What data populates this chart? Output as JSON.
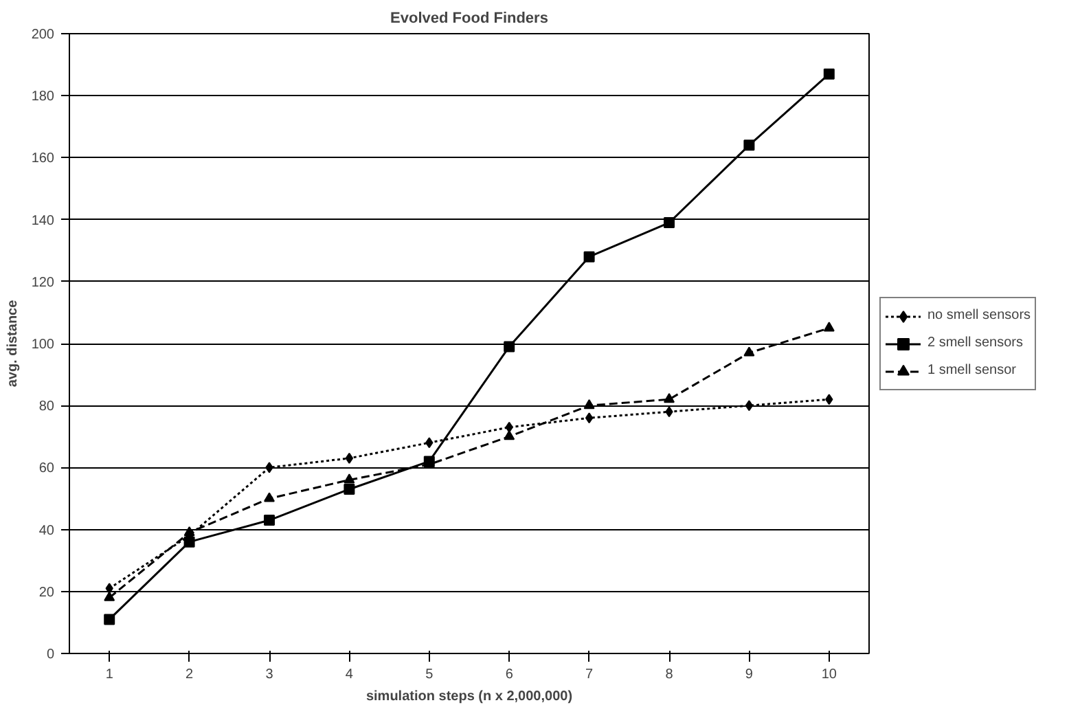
{
  "chart_data": {
    "type": "line",
    "title": "Evolved Food Finders",
    "xlabel": "simulation steps (n x 2,000,000)",
    "ylabel": "avg. distance",
    "categories": [
      "1",
      "2",
      "3",
      "4",
      "5",
      "6",
      "7",
      "8",
      "9",
      "10"
    ],
    "series": [
      {
        "name": "no smell sensors",
        "color": "#000000",
        "marker": "diamond",
        "line_style": "dotted",
        "values": [
          21,
          38,
          60,
          63,
          68,
          73,
          76,
          78,
          80,
          82
        ]
      },
      {
        "name": "2 smell sensors",
        "color": "#000000",
        "marker": "square",
        "line_style": "solid",
        "values": [
          11,
          36,
          43,
          53,
          62,
          99,
          128,
          139,
          164,
          187
        ]
      },
      {
        "name": "1 smell sensor",
        "color": "#000000",
        "marker": "triangle",
        "line_style": "dashed",
        "values": [
          18,
          39,
          50,
          56,
          61,
          70,
          80,
          82,
          97,
          105
        ]
      }
    ],
    "ylim": [
      0,
      200
    ],
    "yticks": [
      0,
      20,
      40,
      60,
      80,
      100,
      120,
      140,
      160,
      180,
      200
    ],
    "grid": "y",
    "legend": "right"
  }
}
